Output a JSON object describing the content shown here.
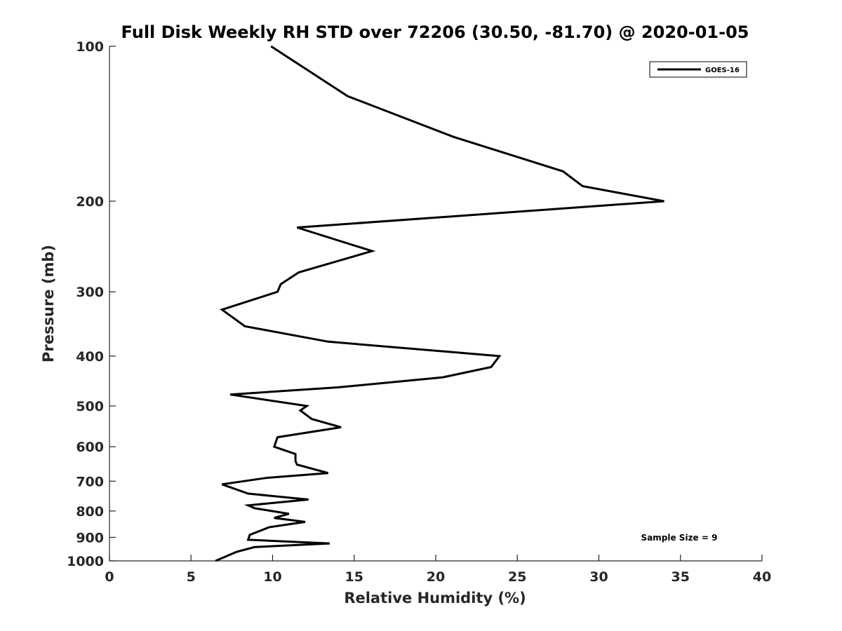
{
  "chart_data": {
    "type": "line",
    "title": "Full Disk Weekly RH STD over 72206 (30.50, -81.70) @ 2020-01-05",
    "xlabel": "Relative Humidity (%)",
    "ylabel": "Pressure (mb)",
    "xlim": [
      0,
      40
    ],
    "ylim": [
      100,
      1000
    ],
    "y_scale": "log",
    "y_reversed": true,
    "xticks": [
      0,
      5,
      10,
      15,
      20,
      25,
      30,
      35,
      40
    ],
    "yticks": [
      100,
      200,
      300,
      400,
      500,
      600,
      700,
      800,
      900,
      1000
    ],
    "grid": false,
    "legend": {
      "placement": "top-right",
      "entries": [
        "GOES-16"
      ]
    },
    "annotation": "Sample Size = 9",
    "series": [
      {
        "name": "GOES-16",
        "color": "#000000",
        "points": [
          [
            9.9,
            100
          ],
          [
            14.6,
            125
          ],
          [
            21.1,
            150
          ],
          [
            27.8,
            175
          ],
          [
            29.0,
            187
          ],
          [
            34.0,
            200
          ],
          [
            11.5,
            225
          ],
          [
            16.1,
            250
          ],
          [
            11.6,
            275
          ],
          [
            10.5,
            290
          ],
          [
            10.3,
            300
          ],
          [
            6.9,
            325
          ],
          [
            8.3,
            350
          ],
          [
            13.4,
            375
          ],
          [
            23.9,
            400
          ],
          [
            23.4,
            420
          ],
          [
            20.4,
            440
          ],
          [
            14.0,
            460
          ],
          [
            7.4,
            475
          ],
          [
            12.1,
            500
          ],
          [
            11.7,
            510
          ],
          [
            12.4,
            530
          ],
          [
            14.2,
            550
          ],
          [
            10.3,
            575
          ],
          [
            10.1,
            600
          ],
          [
            11.4,
            620
          ],
          [
            11.4,
            640
          ],
          [
            11.5,
            650
          ],
          [
            13.4,
            675
          ],
          [
            9.6,
            690
          ],
          [
            6.9,
            710
          ],
          [
            8.5,
            740
          ],
          [
            12.2,
            760
          ],
          [
            8.5,
            780
          ],
          [
            8.9,
            790
          ],
          [
            11.0,
            810
          ],
          [
            10.1,
            825
          ],
          [
            12.0,
            840
          ],
          [
            9.8,
            860
          ],
          [
            8.6,
            890
          ],
          [
            8.5,
            910
          ],
          [
            13.5,
            925
          ],
          [
            8.9,
            940
          ],
          [
            7.8,
            960
          ],
          [
            6.5,
            1000
          ]
        ]
      }
    ]
  }
}
